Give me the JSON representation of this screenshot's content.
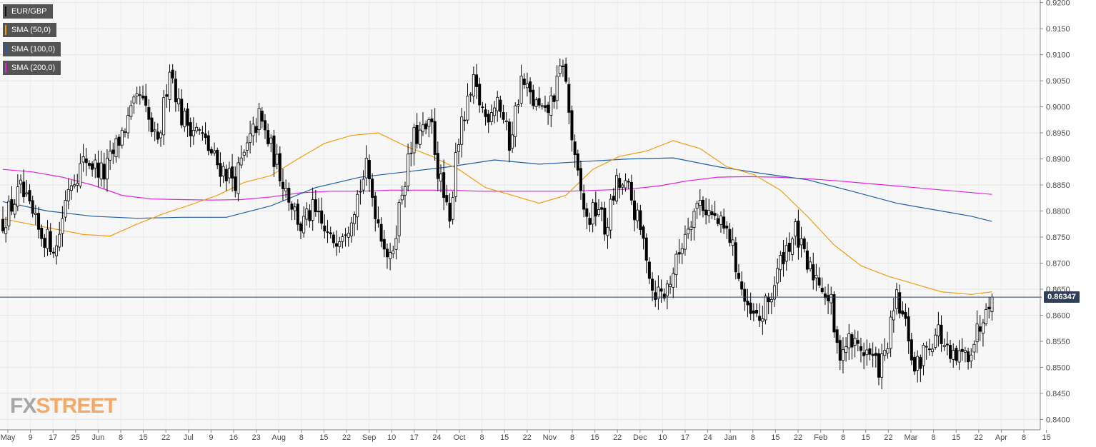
{
  "legend": [
    {
      "label": "EUR/GBP",
      "color": "#222222"
    },
    {
      "label": "SMA (50,0)",
      "color": "#f39c12"
    },
    {
      "label": "SMA (100,0)",
      "color": "#1f5fa8"
    },
    {
      "label": "SMA (200,0)",
      "color": "#e022e0"
    }
  ],
  "current_price": "0.86347",
  "logo": {
    "fx": "FX",
    "street": "STREET"
  },
  "colors": {
    "up": "#ffffff",
    "down": "#000000",
    "price_line": "#2f3f58",
    "sma50": "#f39c12",
    "sma100": "#1f5fa8",
    "sma200": "#e022e0"
  },
  "chart_data": {
    "type": "candlestick",
    "series_name": "EUR/GBP",
    "ylim": [
      0.838,
      0.9205
    ],
    "yticks": [
      "0.9200",
      "0.9150",
      "0.9100",
      "0.9050",
      "0.9000",
      "0.8950",
      "0.8900",
      "0.8850",
      "0.8800",
      "0.8750",
      "0.8700",
      "0.8650",
      "0.8600",
      "0.8550",
      "0.8500",
      "0.8450",
      "0.8400"
    ],
    "xticks": [
      "May",
      "9",
      "17",
      "25",
      "Jun",
      "8",
      "15",
      "22",
      "Jul",
      "9",
      "16",
      "23",
      "Aug",
      "8",
      "15",
      "22",
      "Sep",
      "10",
      "17",
      "24",
      "Oct",
      "8",
      "15",
      "22",
      "Nov",
      "8",
      "15",
      "22",
      "Dec",
      "10",
      "17",
      "24",
      "Jan",
      "8",
      "15",
      "22",
      "Feb",
      "8",
      "15",
      "22",
      "Mar",
      "8",
      "15",
      "22",
      "Apr",
      "8",
      "15"
    ],
    "current_value": 0.86347,
    "price_path": [
      [
        0,
        0.878
      ],
      [
        6,
        0.884
      ],
      [
        12,
        0.876
      ],
      [
        18,
        0.873
      ],
      [
        22,
        0.885
      ],
      [
        28,
        0.89
      ],
      [
        34,
        0.887
      ],
      [
        40,
        0.895
      ],
      [
        46,
        0.902
      ],
      [
        52,
        0.892
      ],
      [
        56,
        0.908
      ],
      [
        60,
        0.898
      ],
      [
        66,
        0.895
      ],
      [
        72,
        0.889
      ],
      [
        78,
        0.886
      ],
      [
        86,
        0.898
      ],
      [
        90,
        0.892
      ],
      [
        100,
        0.877
      ],
      [
        104,
        0.88
      ],
      [
        110,
        0.874
      ],
      [
        116,
        0.878
      ],
      [
        122,
        0.888
      ],
      [
        126,
        0.878
      ],
      [
        130,
        0.87
      ],
      [
        134,
        0.884
      ],
      [
        138,
        0.894
      ],
      [
        144,
        0.896
      ],
      [
        146,
        0.888
      ],
      [
        150,
        0.877
      ],
      [
        152,
        0.892
      ],
      [
        158,
        0.904
      ],
      [
        162,
        0.898
      ],
      [
        166,
        0.902
      ],
      [
        170,
        0.893
      ],
      [
        174,
        0.905
      ],
      [
        178,
        0.901
      ],
      [
        182,
        0.898
      ],
      [
        186,
        0.904
      ],
      [
        188,
        0.909
      ],
      [
        192,
        0.889
      ],
      [
        196,
        0.878
      ],
      [
        200,
        0.881
      ],
      [
        202,
        0.876
      ],
      [
        206,
        0.885
      ],
      [
        210,
        0.884
      ],
      [
        216,
        0.872
      ],
      [
        218,
        0.865
      ],
      [
        222,
        0.864
      ],
      [
        226,
        0.87
      ],
      [
        230,
        0.878
      ],
      [
        234,
        0.882
      ],
      [
        238,
        0.879
      ],
      [
        244,
        0.875
      ],
      [
        250,
        0.86
      ],
      [
        254,
        0.859
      ],
      [
        258,
        0.864
      ],
      [
        262,
        0.872
      ],
      [
        266,
        0.876
      ],
      [
        270,
        0.869
      ],
      [
        274,
        0.867
      ],
      [
        278,
        0.862
      ],
      [
        280,
        0.853
      ],
      [
        284,
        0.855
      ],
      [
        290,
        0.853
      ],
      [
        294,
        0.85
      ],
      [
        296,
        0.852
      ],
      [
        300,
        0.863
      ],
      [
        304,
        0.856
      ],
      [
        306,
        0.849
      ],
      [
        310,
        0.854
      ],
      [
        314,
        0.857
      ],
      [
        318,
        0.851
      ],
      [
        322,
        0.852
      ],
      [
        324,
        0.853
      ],
      [
        328,
        0.858
      ],
      [
        330,
        0.863
      ],
      [
        332,
        0.8635
      ]
    ],
    "sma50": [
      [
        0,
        0.8785
      ],
      [
        9,
        0.8775
      ],
      [
        18,
        0.8765
      ],
      [
        27,
        0.8755
      ],
      [
        36,
        0.8752
      ],
      [
        45,
        0.8775
      ],
      [
        54,
        0.8795
      ],
      [
        63,
        0.8812
      ],
      [
        72,
        0.883
      ],
      [
        81,
        0.8855
      ],
      [
        90,
        0.8868
      ],
      [
        99,
        0.89
      ],
      [
        108,
        0.893
      ],
      [
        117,
        0.8945
      ],
      [
        126,
        0.895
      ],
      [
        135,
        0.8925
      ],
      [
        144,
        0.8905
      ],
      [
        153,
        0.888
      ],
      [
        162,
        0.8845
      ],
      [
        171,
        0.883
      ],
      [
        180,
        0.8815
      ],
      [
        189,
        0.883
      ],
      [
        198,
        0.888
      ],
      [
        207,
        0.8905
      ],
      [
        216,
        0.8915
      ],
      [
        225,
        0.8935
      ],
      [
        234,
        0.892
      ],
      [
        243,
        0.8885
      ],
      [
        252,
        0.887
      ],
      [
        261,
        0.884
      ],
      [
        270,
        0.879
      ],
      [
        279,
        0.8735
      ],
      [
        288,
        0.8695
      ],
      [
        297,
        0.8675
      ],
      [
        306,
        0.866
      ],
      [
        315,
        0.8645
      ],
      [
        325,
        0.864
      ],
      [
        332,
        0.8645
      ]
    ],
    "sma100": [
      [
        0,
        0.8818
      ],
      [
        15,
        0.88
      ],
      [
        30,
        0.879
      ],
      [
        45,
        0.8786
      ],
      [
        60,
        0.8788
      ],
      [
        75,
        0.8788
      ],
      [
        90,
        0.881
      ],
      [
        105,
        0.8845
      ],
      [
        120,
        0.8865
      ],
      [
        135,
        0.8875
      ],
      [
        150,
        0.8885
      ],
      [
        165,
        0.8898
      ],
      [
        180,
        0.889
      ],
      [
        195,
        0.8895
      ],
      [
        210,
        0.89
      ],
      [
        225,
        0.8902
      ],
      [
        240,
        0.8885
      ],
      [
        255,
        0.8872
      ],
      [
        270,
        0.886
      ],
      [
        285,
        0.8838
      ],
      [
        300,
        0.8815
      ],
      [
        315,
        0.88
      ],
      [
        325,
        0.879
      ],
      [
        332,
        0.878
      ]
    ],
    "sma200": [
      [
        0,
        0.888
      ],
      [
        10,
        0.8875
      ],
      [
        20,
        0.8865
      ],
      [
        30,
        0.885
      ],
      [
        40,
        0.883
      ],
      [
        50,
        0.8823
      ],
      [
        60,
        0.8822
      ],
      [
        70,
        0.8821
      ],
      [
        80,
        0.8822
      ],
      [
        90,
        0.8827
      ],
      [
        100,
        0.8835
      ],
      [
        110,
        0.8838
      ],
      [
        120,
        0.8838
      ],
      [
        130,
        0.884
      ],
      [
        140,
        0.884
      ],
      [
        150,
        0.884
      ],
      [
        160,
        0.8838
      ],
      [
        170,
        0.8838
      ],
      [
        180,
        0.8838
      ],
      [
        190,
        0.8838
      ],
      [
        200,
        0.884
      ],
      [
        210,
        0.8842
      ],
      [
        220,
        0.8848
      ],
      [
        230,
        0.8858
      ],
      [
        240,
        0.8865
      ],
      [
        250,
        0.8866
      ],
      [
        260,
        0.8865
      ],
      [
        270,
        0.8862
      ],
      [
        280,
        0.8858
      ],
      [
        290,
        0.8853
      ],
      [
        300,
        0.8848
      ],
      [
        310,
        0.8843
      ],
      [
        320,
        0.8838
      ],
      [
        332,
        0.8832
      ]
    ]
  }
}
